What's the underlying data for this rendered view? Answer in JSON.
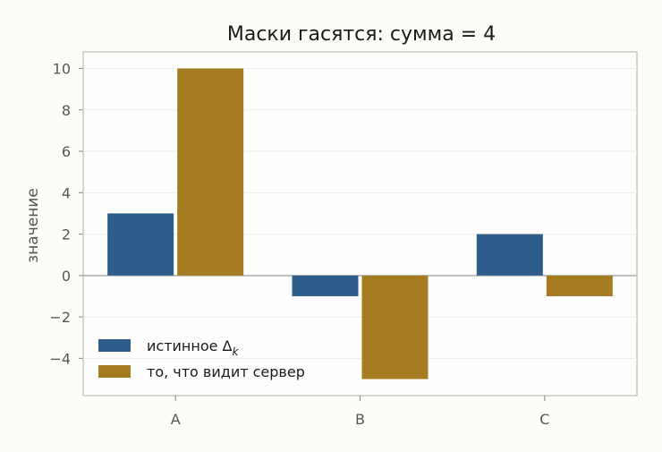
{
  "chart_data": {
    "type": "bar",
    "title": "Маски гасятся: сумма = 4",
    "xlabel": "",
    "ylabel": "значение",
    "categories": [
      "A",
      "B",
      "C"
    ],
    "series": [
      {
        "name": "истинное Δ",
        "name_subscript": "k",
        "values": [
          3,
          -1,
          2
        ],
        "color": "#2e5d8c"
      },
      {
        "name": "то, что видит сервер",
        "values": [
          10,
          -5,
          -1
        ],
        "color": "#a67c22"
      }
    ],
    "ylim": [
      -5.8,
      10.8
    ],
    "yticks": [
      10,
      8,
      6,
      4,
      2,
      0,
      -2,
      -4
    ],
    "ytick_labels": [
      "10",
      "8",
      "6",
      "4",
      "2",
      "0",
      "−2",
      "−4"
    ],
    "grid": true,
    "zero_line": true,
    "legend_position": "lower-left"
  }
}
